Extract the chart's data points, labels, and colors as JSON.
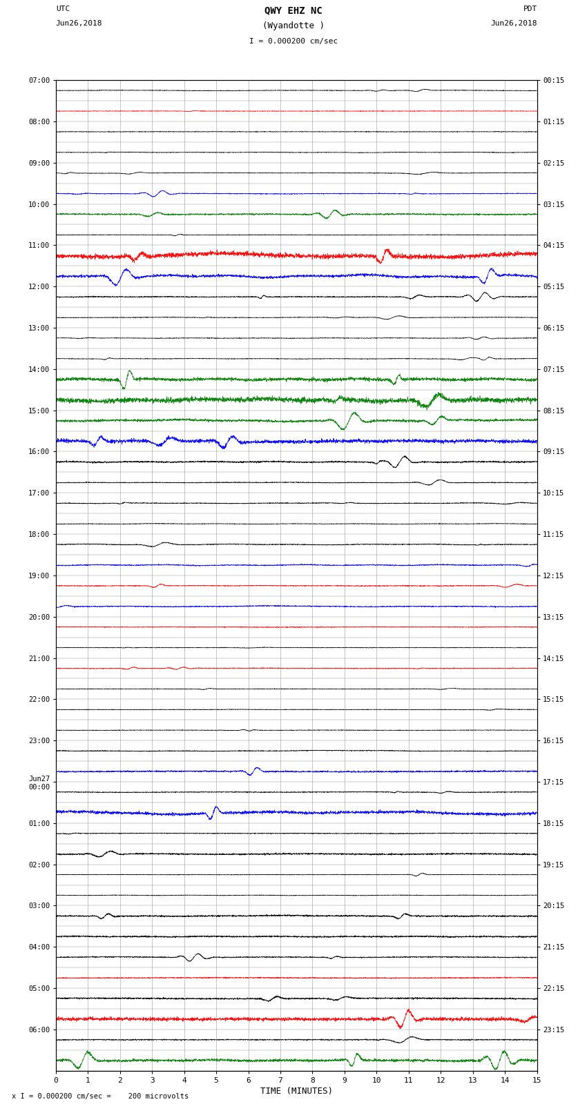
{
  "title_line1": "QWY EHZ NC",
  "title_line2": "(Wyandotte )",
  "scale_text": "I = 0.000200 cm/sec",
  "footer_text": "x I = 0.000200 cm/sec =    200 microvolts",
  "left_label_line1": "UTC",
  "left_label_line2": "Jun26,2018",
  "right_label_line1": "PDT",
  "right_label_line2": "Jun26,2018",
  "xlabel": "TIME (MINUTES)",
  "fig_width": 8.5,
  "fig_height": 16.13,
  "dpi": 100,
  "bg_color": "#ffffff",
  "grid_color": "#aaaaaa",
  "num_rows": 48,
  "minute_duration": 15,
  "utc_labels": [
    "07:00",
    "",
    "08:00",
    "",
    "09:00",
    "",
    "10:00",
    "",
    "11:00",
    "",
    "12:00",
    "",
    "13:00",
    "",
    "14:00",
    "",
    "15:00",
    "",
    "16:00",
    "",
    "17:00",
    "",
    "18:00",
    "",
    "19:00",
    "",
    "20:00",
    "",
    "21:00",
    "",
    "22:00",
    "",
    "23:00",
    "",
    "Jun27\n00:00",
    "",
    "01:00",
    "",
    "02:00",
    "",
    "03:00",
    "",
    "04:00",
    "",
    "05:00",
    "",
    "06:00",
    ""
  ],
  "pdt_labels": [
    "00:15",
    "",
    "01:15",
    "",
    "02:15",
    "",
    "03:15",
    "",
    "04:15",
    "",
    "05:15",
    "",
    "06:15",
    "",
    "07:15",
    "",
    "08:15",
    "",
    "09:15",
    "",
    "10:15",
    "",
    "11:15",
    "",
    "12:15",
    "",
    "13:15",
    "",
    "14:15",
    "",
    "15:15",
    "",
    "16:15",
    "",
    "17:15",
    "",
    "18:15",
    "",
    "19:15",
    "",
    "20:15",
    "",
    "21:15",
    "",
    "22:15",
    "",
    "23:15",
    ""
  ],
  "row_colors": [
    "black",
    "red",
    "black",
    "black",
    "black",
    "blue",
    "green",
    "black",
    "red",
    "blue",
    "black",
    "black",
    "black",
    "black",
    "green",
    "green",
    "green",
    "blue",
    "black",
    "black",
    "black",
    "black",
    "black",
    "blue",
    "red",
    "blue",
    "red",
    "black",
    "red",
    "black",
    "black",
    "black",
    "black",
    "blue",
    "black",
    "blue",
    "black",
    "black",
    "black",
    "black",
    "black",
    "black",
    "black",
    "red",
    "black",
    "red",
    "black",
    "green"
  ],
  "row_amplitudes": [
    0.04,
    0.04,
    0.04,
    0.04,
    0.04,
    0.06,
    0.12,
    0.04,
    0.35,
    0.28,
    0.08,
    0.04,
    0.04,
    0.04,
    0.25,
    0.45,
    0.18,
    0.28,
    0.12,
    0.06,
    0.06,
    0.04,
    0.06,
    0.08,
    0.06,
    0.08,
    0.06,
    0.04,
    0.06,
    0.04,
    0.04,
    0.04,
    0.06,
    0.12,
    0.06,
    0.22,
    0.06,
    0.12,
    0.04,
    0.04,
    0.12,
    0.12,
    0.08,
    0.08,
    0.12,
    0.32,
    0.08,
    0.22
  ]
}
